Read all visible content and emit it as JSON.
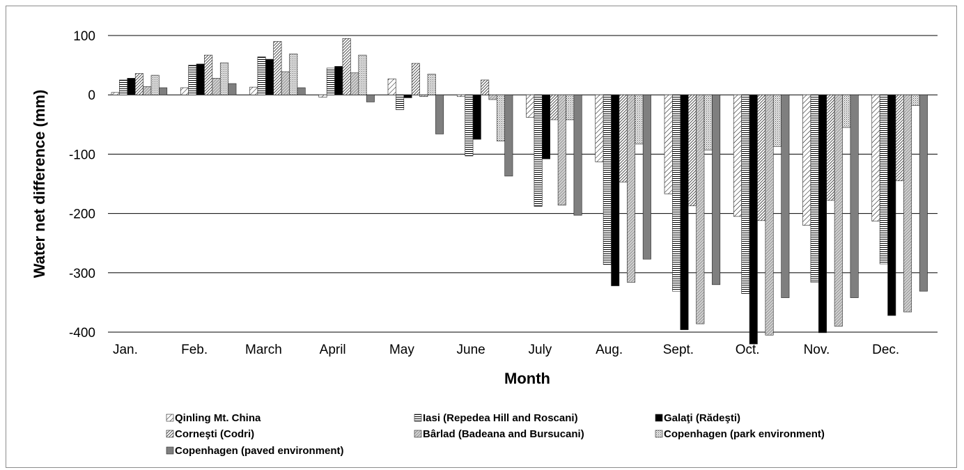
{
  "chart_data": {
    "type": "bar",
    "title": "",
    "xlabel": "Month",
    "ylabel": "Water net difference (mm)",
    "ylim": [
      -400,
      100
    ],
    "yticks": [
      100,
      0,
      -100,
      -200,
      -300,
      -400
    ],
    "grid": true,
    "legend_position": "bottom",
    "categories": [
      "Jan.",
      "Feb.",
      "March",
      "April",
      "May",
      "June",
      "July",
      "Aug.",
      "Sept.",
      "Oct.",
      "Nov.",
      "Dec."
    ],
    "series": [
      {
        "name": "Qinling Mt. China",
        "pattern": "diag-sparse",
        "values": [
          4,
          12,
          13,
          -4,
          27,
          -3,
          -38,
          -113,
          -167,
          -205,
          -220,
          -213
        ]
      },
      {
        "name": "Iasi (Repedea Hill and Roscani)",
        "pattern": "hlines",
        "values": [
          25,
          50,
          64,
          45,
          -25,
          -103,
          -188,
          -286,
          -331,
          -335,
          -316,
          -285
        ]
      },
      {
        "name": "Galaţi (Rădeşti)",
        "pattern": "solid-black",
        "values": [
          28,
          52,
          60,
          48,
          -5,
          -75,
          -108,
          -322,
          -396,
          -420,
          -401,
          -372
        ]
      },
      {
        "name": "Corneşti (Codri)",
        "pattern": "diag-dense",
        "values": [
          36,
          67,
          90,
          95,
          53,
          25,
          -42,
          -147,
          -187,
          -212,
          -178,
          -145
        ]
      },
      {
        "name": "Bârlad (Badeana and Bursucani)",
        "pattern": "diag-grey",
        "values": [
          14,
          28,
          39,
          37,
          -3,
          -8,
          -186,
          -316,
          -386,
          -405,
          -390,
          -366
        ]
      },
      {
        "name": "Copenhagen (park environment)",
        "pattern": "dots",
        "values": [
          33,
          54,
          69,
          67,
          35,
          -78,
          -42,
          -83,
          -93,
          -87,
          -55,
          -18
        ]
      },
      {
        "name": "Copenhagen (paved environment)",
        "pattern": "solid-grey",
        "values": [
          12,
          19,
          12,
          -12,
          -66,
          -137,
          -203,
          -277,
          -320,
          -342,
          -342,
          -331
        ]
      }
    ]
  }
}
